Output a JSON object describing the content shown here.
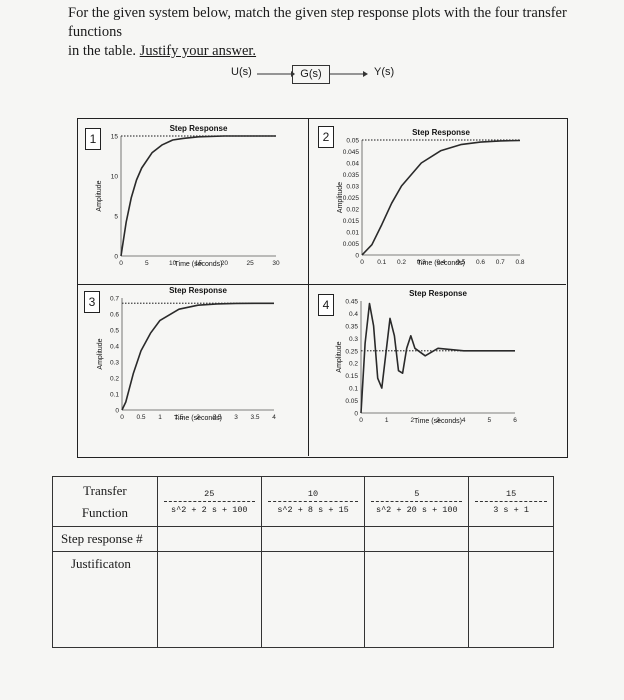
{
  "question": {
    "line1": "For the given system below, match the given step response plots with the four transfer functions",
    "line2_plain": "in the table. ",
    "line2_underlined": "Justify your answer."
  },
  "block_diagram": {
    "input": "U(s)",
    "block": "G(s)",
    "output": "Y(s)"
  },
  "plots": [
    {
      "number": "1",
      "title": "Step Response",
      "xlabel": "Time (seconds)",
      "ylabel": "Amplitude",
      "xticks": [
        "0",
        "5",
        "10",
        "15",
        "20",
        "25",
        "30"
      ],
      "yticks": [
        "0",
        "5",
        "10",
        "15"
      ]
    },
    {
      "number": "2",
      "title": "Step Response",
      "xlabel": "Time (seconds)",
      "ylabel": "Amplitude",
      "xticks": [
        "0",
        "0.1",
        "0.2",
        "0.3",
        "0.4",
        "0.5",
        "0.6",
        "0.7",
        "0.8"
      ],
      "yticks": [
        "0",
        "0.005",
        "0.01",
        "0.015",
        "0.02",
        "0.025",
        "0.03",
        "0.035",
        "0.04",
        "0.045",
        "0.05"
      ]
    },
    {
      "number": "3",
      "title": "Step Response",
      "xlabel": "Time (seconds)",
      "ylabel": "Amplitude",
      "xticks": [
        "0",
        "0.5",
        "1",
        "1.5",
        "2",
        "2.5",
        "3",
        "3.5",
        "4"
      ],
      "yticks": [
        "0",
        "0.1",
        "0.2",
        "0.3",
        "0.4",
        "0.5",
        "0.6",
        "0.7"
      ]
    },
    {
      "number": "4",
      "title": "Step Response",
      "xlabel": "Time (seconds)",
      "ylabel": "Amplitude",
      "xticks": [
        "0",
        "1",
        "2",
        "3",
        "4",
        "5",
        "6"
      ],
      "yticks": [
        "0",
        "0.05",
        "0.1",
        "0.15",
        "0.2",
        "0.25",
        "0.3",
        "0.35",
        "0.4",
        "0.45"
      ]
    }
  ],
  "table": {
    "row1_label_a": "Transfer",
    "row1_label_b": "Function",
    "row2_label": "Step response #",
    "row3_label": "Justificaton",
    "functions": [
      {
        "num": "25",
        "den": "s^2 + 2 s + 100"
      },
      {
        "num": "10",
        "den": "s^2 + 8 s + 15"
      },
      {
        "num": "5",
        "den": "s^2 + 20 s + 100"
      },
      {
        "num": "15",
        "den": "3 s + 1"
      }
    ]
  },
  "chart_data": [
    {
      "type": "line",
      "title": "Step Response",
      "xlabel": "Time (seconds)",
      "ylabel": "Amplitude",
      "xlim": [
        0,
        30
      ],
      "ylim": [
        0,
        15
      ],
      "final_value": 15,
      "series": [
        {
          "x": [
            0,
            1,
            2,
            3,
            4,
            6,
            8,
            10,
            12,
            15,
            20,
            25,
            30
          ],
          "y": [
            0,
            4.25,
            7.3,
            9.5,
            11.0,
            12.9,
            13.9,
            14.5,
            14.7,
            14.9,
            15,
            15,
            15
          ]
        }
      ]
    },
    {
      "type": "line",
      "title": "Step Response",
      "xlabel": "Time (seconds)",
      "ylabel": "Amplitude",
      "xlim": [
        0,
        0.8
      ],
      "ylim": [
        0,
        0.05
      ],
      "final_value": 0.05,
      "series": [
        {
          "x": [
            0,
            0.05,
            0.1,
            0.15,
            0.2,
            0.3,
            0.4,
            0.5,
            0.6,
            0.7,
            0.8
          ],
          "y": [
            0,
            0.0045,
            0.0132,
            0.0225,
            0.03,
            0.04,
            0.0454,
            0.048,
            0.0491,
            0.0496,
            0.0498
          ]
        }
      ]
    },
    {
      "type": "line",
      "title": "Step Response",
      "xlabel": "Time (seconds)",
      "ylabel": "Amplitude",
      "xlim": [
        0,
        4
      ],
      "ylim": [
        0,
        0.7
      ],
      "final_value": 0.667,
      "series": [
        {
          "x": [
            0,
            0.1,
            0.2,
            0.3,
            0.5,
            0.75,
            1,
            1.5,
            2,
            2.5,
            3,
            3.5,
            4
          ],
          "y": [
            0,
            0.05,
            0.14,
            0.23,
            0.37,
            0.48,
            0.56,
            0.63,
            0.655,
            0.663,
            0.666,
            0.667,
            0.667
          ]
        }
      ]
    },
    {
      "type": "line",
      "title": "Step Response",
      "xlabel": "Time (seconds)",
      "ylabel": "Amplitude",
      "xlim": [
        0,
        6
      ],
      "ylim": [
        0,
        0.45
      ],
      "final_value": 0.25,
      "series": [
        {
          "x": [
            0,
            0.16,
            0.33,
            0.49,
            0.65,
            0.81,
            0.97,
            1.13,
            1.3,
            1.46,
            1.62,
            1.78,
            1.94,
            2.1,
            2.5,
            3,
            4,
            5,
            6
          ],
          "y": [
            0,
            0.28,
            0.44,
            0.35,
            0.14,
            0.1,
            0.24,
            0.38,
            0.31,
            0.17,
            0.16,
            0.26,
            0.31,
            0.26,
            0.23,
            0.26,
            0.25,
            0.25,
            0.25
          ]
        }
      ]
    }
  ]
}
